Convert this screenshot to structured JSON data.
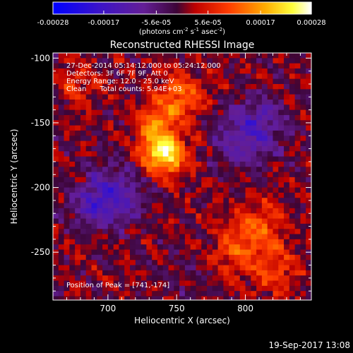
{
  "chart_data": {
    "type": "heatmap",
    "title": "Reconstructed RHESSI Image",
    "xlabel": "Heliocentric X (arcsec)",
    "ylabel": "Heliocentric Y (arcsec)",
    "xlim": [
      660,
      848
    ],
    "ylim": [
      -287,
      -96
    ],
    "x_ticks": [
      {
        "value": 700,
        "label": "700"
      },
      {
        "value": 750,
        "label": "750"
      },
      {
        "value": 800,
        "label": "800"
      }
    ],
    "y_ticks": [
      {
        "value": -100,
        "label": "-100"
      },
      {
        "value": -150,
        "label": "-150"
      },
      {
        "value": -200,
        "label": "-200"
      },
      {
        "value": -250,
        "label": "-250"
      }
    ],
    "colorbar": {
      "range": [
        -0.00028,
        0.00028
      ],
      "tick_values": [
        -0.00028,
        -0.00017,
        -5.6e-05,
        5.6e-05,
        0.00017,
        0.00028
      ],
      "tick_labels": [
        "-0.00028",
        "-0.00017",
        "-5.6e-05",
        "5.6e-05",
        "0.00017",
        "0.00028"
      ],
      "units_text": "(photons cm",
      "units_exp1": "-2",
      "units_mid": " s",
      "units_exp2": "-1",
      "units_tail": " asec",
      "units_exp3": "-2",
      "units_close": ")"
    },
    "image": {
      "pixel_size_arcsec": 4,
      "sources": [
        {
          "x": 741,
          "y": -174,
          "sigma": 11,
          "amplitude": 0.00026
        },
        {
          "x": 752,
          "y": -130,
          "sigma": 13,
          "amplitude": 0.00013
        },
        {
          "x": 733,
          "y": -152,
          "sigma": 10,
          "amplitude": 0.00011
        },
        {
          "x": 808,
          "y": -232,
          "sigma": 15,
          "amplitude": 0.0001
        },
        {
          "x": 822,
          "y": -265,
          "sigma": 13,
          "amplitude": 8e-05
        },
        {
          "x": 790,
          "y": -252,
          "sigma": 12,
          "amplitude": 7e-05
        },
        {
          "x": 680,
          "y": -120,
          "sigma": 12,
          "amplitude": 6e-05
        },
        {
          "x": 705,
          "y": -205,
          "sigma": 16,
          "amplitude": -0.00012
        },
        {
          "x": 690,
          "y": -215,
          "sigma": 12,
          "amplitude": -8e-05
        },
        {
          "x": 800,
          "y": -160,
          "sigma": 16,
          "amplitude": -0.00012
        },
        {
          "x": 815,
          "y": -145,
          "sigma": 12,
          "amplitude": -6e-05
        },
        {
          "x": 760,
          "y": -270,
          "sigma": 12,
          "amplitude": -4e-05
        }
      ]
    },
    "peak": {
      "x": 741,
      "y": -174
    }
  },
  "annotations": {
    "time_range": "27-Dec-2014 05:14:12.000 to 05:24:12.000",
    "detectors": "Detectors: 3F 6F 7F 9F, Att 0",
    "energy_range": "Energy Range: 12.0 - 25.0 keV",
    "clean_counts": "Clean      Total counts: 5.94E+03",
    "peak_position": "Position of Peak = [741,-174]"
  },
  "footer": {
    "timestamp": "19-Sep-2017 13:08"
  }
}
